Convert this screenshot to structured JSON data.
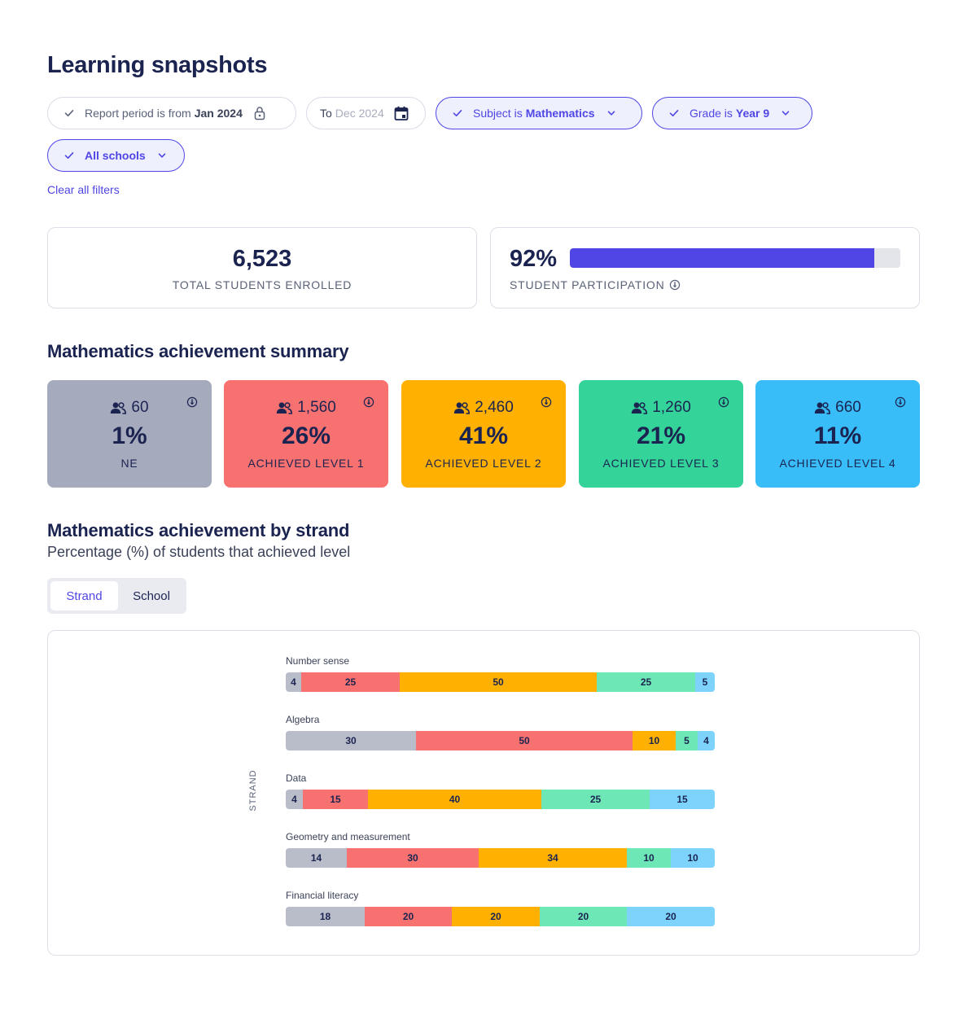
{
  "page": {
    "title": "Learning snapshots"
  },
  "filters": {
    "period_from": {
      "prefix": "Report period is from",
      "value": "Jan 2024",
      "icon": "lock-icon"
    },
    "period_to": {
      "prefix": "To",
      "value": "Dec 2024",
      "icon": "calendar-icon"
    },
    "subject": {
      "prefix": "Subject is",
      "value": "Mathematics"
    },
    "grade": {
      "prefix": "Grade is",
      "value": "Year 9"
    },
    "schools": {
      "value": "All schools"
    },
    "clear_label": "Clear all filters"
  },
  "stats": {
    "enrolled": {
      "value": "6,523",
      "label": "TOTAL STUDENTS ENROLLED"
    },
    "participation": {
      "value": "92%",
      "label": "STUDENT PARTICIPATION",
      "fraction": 0.92
    }
  },
  "summary": {
    "title": "Mathematics achievement summary",
    "levels": [
      {
        "count": "60",
        "percent": "1%",
        "label": "NE",
        "color": "#a6aabd"
      },
      {
        "count": "1,560",
        "percent": "26%",
        "label": "ACHIEVED LEVEL 1",
        "color": "#f87171"
      },
      {
        "count": "2,460",
        "percent": "41%",
        "label": "ACHIEVED LEVEL 2",
        "color": "#ffb000"
      },
      {
        "count": "1,260",
        "percent": "21%",
        "label": "ACHIEVED LEVEL 3",
        "color": "#34d399"
      },
      {
        "count": "660",
        "percent": "11%",
        "label": "ACHIEVED LEVEL 4",
        "color": "#38bdf8"
      }
    ]
  },
  "strand_section": {
    "title": "Mathematics achievement by strand",
    "subtitle": "Percentage (%) of students that achieved level",
    "tabs": [
      "Strand",
      "School"
    ],
    "active_tab": "Strand"
  },
  "chart_data": {
    "type": "bar",
    "orientation": "horizontal-stacked",
    "ylabel": "STRAND",
    "categories": [
      "Number sense",
      "Algebra",
      "Data",
      "Geometry and measurement",
      "Financial literacy"
    ],
    "segment_colors": [
      "#b9bdca",
      "#f87171",
      "#ffb000",
      "#6ee7b7",
      "#7dd3fc"
    ],
    "rows": [
      [
        4,
        25,
        50,
        25,
        5
      ],
      [
        30,
        50,
        10,
        5,
        4
      ],
      [
        4,
        15,
        40,
        25,
        15
      ],
      [
        14,
        30,
        34,
        10,
        10
      ],
      [
        18,
        20,
        20,
        20,
        20
      ]
    ]
  }
}
